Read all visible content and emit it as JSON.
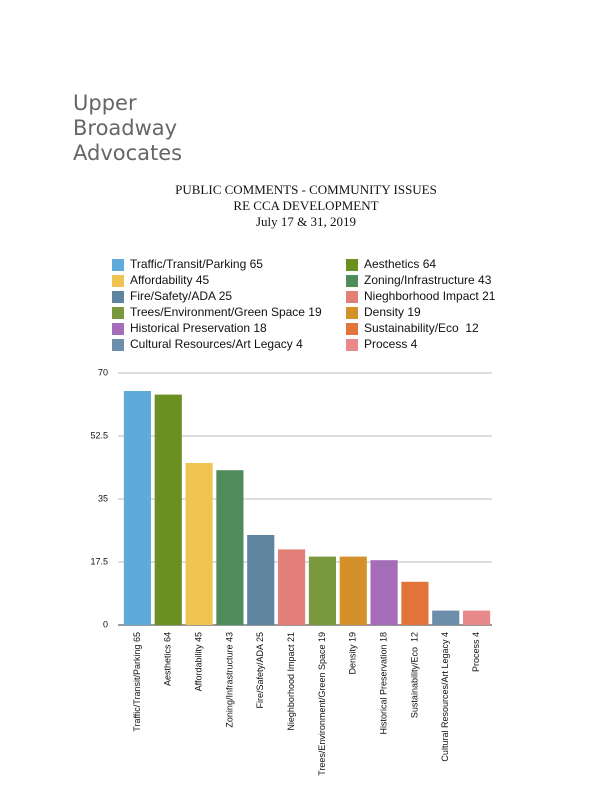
{
  "header": {
    "lines": [
      "Upper",
      "Broadway",
      "Advocates"
    ]
  },
  "chart_data": {
    "type": "bar",
    "title": [
      "PUBLIC COMMENTS - COMMUNITY ISSUES",
      "RE CCA DEVELOPMENT",
      "July 17 & 31, 2019"
    ],
    "categories": [
      "Traffic/Transit/Parking 65",
      "Aesthetics 64",
      "Affordability 45",
      "Zoning/Infrastructure 43",
      "Fire/Safety/ADA 25",
      "Nieghborhood Impact 21",
      "Trees/Environment/Green Space 19",
      "Density 19",
      "Historical Preservation 18",
      "Sustainability/Eco  12",
      "Cultural Resources/Art Legacy 4",
      "Process 4"
    ],
    "values": [
      65,
      64,
      45,
      43,
      25,
      21,
      19,
      19,
      18,
      12,
      4,
      4
    ],
    "colors": [
      "#5eaad9",
      "#6a9022",
      "#efc451",
      "#4e8c5b",
      "#5e84a0",
      "#e27f79",
      "#7a993f",
      "#d4912a",
      "#a56cb8",
      "#e2743a",
      "#6c8eab",
      "#e8898b"
    ],
    "ylim": [
      0,
      70
    ],
    "yticks": [
      0,
      17.5,
      35,
      52.5,
      70
    ],
    "grid": true,
    "legend_columns": 2
  }
}
